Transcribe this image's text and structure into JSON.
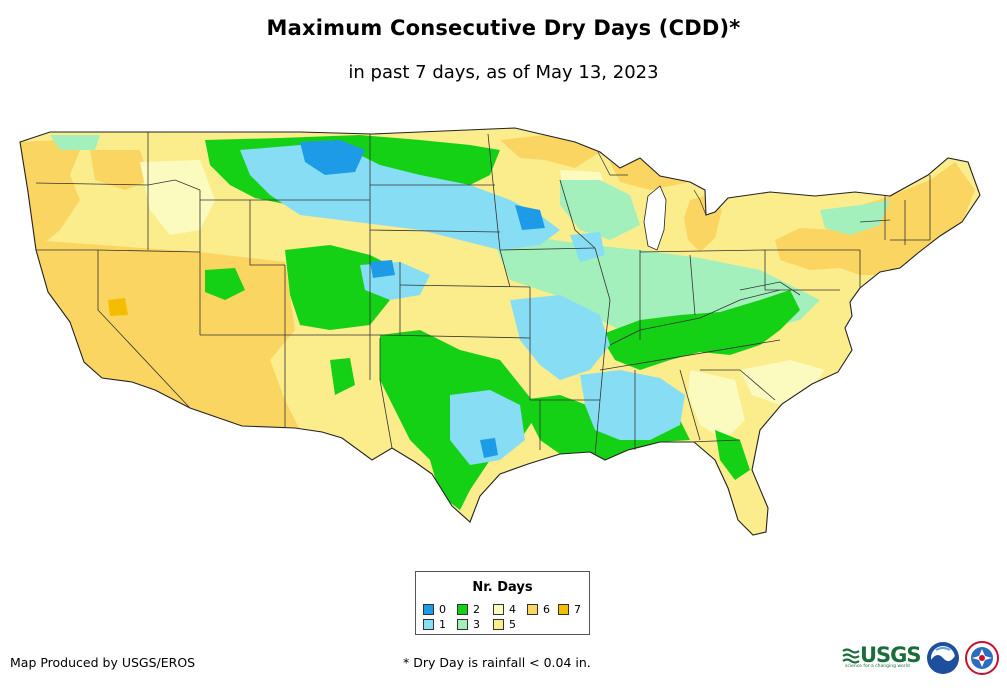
{
  "header": {
    "title": "Maximum Consecutive Dry Days (CDD)*",
    "subtitle": "in past 7 days, as of May 13, 2023"
  },
  "legend": {
    "title": "Nr. Days",
    "items": [
      {
        "label": "0",
        "color": "#1e9be6"
      },
      {
        "label": "1",
        "color": "#87def4"
      },
      {
        "label": "2",
        "color": "#15d115"
      },
      {
        "label": "3",
        "color": "#a3f0bc"
      },
      {
        "label": "4",
        "color": "#fbfbc0"
      },
      {
        "label": "5",
        "color": "#fbec8c"
      },
      {
        "label": "6",
        "color": "#fbd562"
      },
      {
        "label": "7",
        "color": "#f5bd00"
      }
    ]
  },
  "footer": {
    "credit": "Map Produced by USGS/EROS",
    "footnote": "* Dry Day is rainfall < 0.04 in.",
    "usgs_logo_text": "USGS",
    "usgs_tagline": "science for a changing world"
  },
  "icons": [
    "usgs-logo-icon",
    "noaa-logo-icon",
    "nws-logo-icon"
  ]
}
